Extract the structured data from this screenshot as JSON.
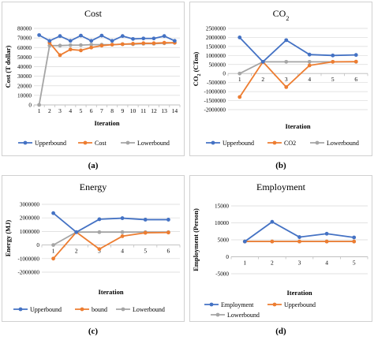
{
  "colors": {
    "blue": "#4472C4",
    "orange": "#ED7D31",
    "gray": "#A5A5A5",
    "grid": "#D9D9D9",
    "axis": "#BFBFBF",
    "text": "#000000"
  },
  "captions": [
    "(a)",
    "(b)",
    "(c)",
    "(d)"
  ],
  "chart_data": [
    {
      "type": "line",
      "title": "Cost",
      "xlabel": "Iteration",
      "ylabel": "Cost (T dollar)",
      "categories": [
        "1",
        "2",
        "3",
        "4",
        "5",
        "6",
        "7",
        "8",
        "9",
        "10",
        "11",
        "12",
        "13",
        "14"
      ],
      "ylim": [
        0,
        80000
      ],
      "yticks": [
        0,
        10000,
        20000,
        30000,
        40000,
        50000,
        60000,
        70000,
        80000
      ],
      "ytick_labels": [
        "0",
        "10000",
        "20000",
        "30000",
        "40000",
        "50000",
        "60000",
        "70000",
        "80000"
      ],
      "grid": true,
      "legend": "bottom",
      "series": [
        {
          "name": "Upperbound",
          "color": "blue",
          "values": [
            73000,
            67000,
            72000,
            67000,
            72500,
            67000,
            72500,
            67000,
            72000,
            69000,
            69500,
            69500,
            72000,
            67000
          ]
        },
        {
          "name": "Cost",
          "color": "orange",
          "values": [
            null,
            65000,
            52000,
            58000,
            57000,
            60000,
            62000,
            63000,
            63500,
            64000,
            64500,
            64500,
            65000,
            65000
          ]
        },
        {
          "name": "Lowerbound",
          "color": "gray",
          "values": [
            0,
            62000,
            62000,
            62500,
            62500,
            63000,
            63000,
            63000,
            63500,
            63500,
            64000,
            64000,
            64500,
            65000
          ]
        }
      ]
    },
    {
      "type": "line",
      "title": "CO",
      "title_sub": "2",
      "xlabel": "Iteration",
      "ylabel": "CO",
      "ylabel_sub": "2",
      "ylabel_rest": " (CTon)",
      "categories": [
        "1",
        "2",
        "3",
        "4",
        "5",
        "6"
      ],
      "ylim": [
        -2000000,
        2500000
      ],
      "yticks": [
        -2000000,
        -1500000,
        -1000000,
        -500000,
        0,
        500000,
        1000000,
        1500000,
        2000000,
        2500000
      ],
      "ytick_labels": [
        "-2000000",
        "-1500000",
        "-1000000",
        "-500000",
        "0",
        "500000",
        "1000000",
        "1500000",
        "2000000",
        "2500000"
      ],
      "grid": true,
      "legend": "bottom",
      "series": [
        {
          "name": "Upperbound",
          "color": "blue",
          "values": [
            2000000,
            650000,
            1850000,
            1050000,
            1000000,
            1030000
          ]
        },
        {
          "name": "CO2",
          "color": "orange",
          "values": [
            -1300000,
            650000,
            -750000,
            450000,
            650000,
            660000
          ]
        },
        {
          "name": "Lowerbound",
          "color": "gray",
          "values": [
            0,
            650000,
            650000,
            650000,
            650000,
            650000
          ]
        }
      ]
    },
    {
      "type": "line",
      "title": "Energy",
      "xlabel": "Iteration",
      "ylabel": "Energy (MJ)",
      "categories": [
        "1",
        "2",
        "3",
        "4",
        "5",
        "6"
      ],
      "ylim": [
        -2000000,
        3000000
      ],
      "yticks": [
        -2000000,
        -1000000,
        0,
        1000000,
        2000000,
        3000000
      ],
      "ytick_labels": [
        "-2000000",
        "-1000000",
        "0",
        "1000000",
        "2000000",
        "3000000"
      ],
      "grid": true,
      "legend": "bottom",
      "series": [
        {
          "name": "Upperbound",
          "color": "blue",
          "values": [
            2350000,
            950000,
            1900000,
            1980000,
            1870000,
            1870000
          ]
        },
        {
          "name": "bound",
          "color": "orange",
          "values": [
            -1000000,
            950000,
            -300000,
            650000,
            900000,
            920000
          ]
        },
        {
          "name": "Lowerbound",
          "color": "gray",
          "values": [
            0,
            950000,
            950000,
            950000,
            950000,
            950000
          ]
        }
      ]
    },
    {
      "type": "line",
      "title": "Employment",
      "xlabel": "Iteration",
      "ylabel": "Employment (Person)",
      "categories": [
        "1",
        "2",
        "3",
        "4",
        "5"
      ],
      "ylim": [
        -5000,
        15000
      ],
      "yticks": [
        -5000,
        0,
        5000,
        10000,
        15000
      ],
      "ytick_labels": [
        "-5000",
        "0",
        "5000",
        "10000",
        "15000"
      ],
      "grid": true,
      "legend": "bottom",
      "series": [
        {
          "name": "Employment",
          "color": "blue",
          "values": [
            4500,
            10300,
            5800,
            6800,
            5700
          ]
        },
        {
          "name": "Upperbound",
          "color": "orange",
          "values": [
            4500,
            4500,
            4500,
            4500,
            4500
          ]
        },
        {
          "name": "Lowerbound",
          "color": "gray",
          "values": [
            4500,
            4500,
            4500,
            4500,
            4500
          ]
        }
      ]
    }
  ]
}
